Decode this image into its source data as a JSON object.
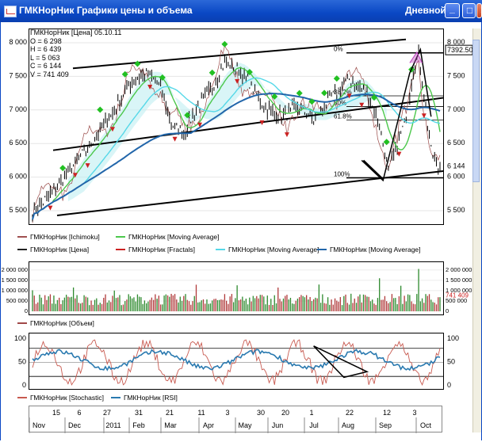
{
  "window": {
    "title": "ГМКНорНик Графики цены и объема",
    "period": "Дневной"
  },
  "ohlc": {
    "header": "ГМКНорНик [Цена] 05.10.11",
    "o": "O = 6 298",
    "h": "H = 6 439",
    "l": "L = 5 063",
    "c": "C = 6 144",
    "v": "V = 741 409"
  },
  "price_axis": [
    "8 000",
    "7 500",
    "7 000",
    "6 500",
    "6 000",
    "5 500"
  ],
  "price_left_axis": [
    "8 000",
    "7 500",
    "7 000",
    "6 500",
    "6 000",
    "5 500"
  ],
  "price_markers": {
    "high": "7392.50",
    "last": "6 144"
  },
  "fib_levels": [
    "0%",
    "38.2%",
    "50%",
    "61.8%",
    "100%"
  ],
  "legend_price": [
    {
      "name": "ГМКНорНик [Ichimoku]",
      "color": "#a05050"
    },
    {
      "name": "ГМКНорНик [Moving Average]",
      "color": "#4cc84c"
    },
    {
      "name": "ГМКНорНик [Цена]",
      "color": "#222222"
    },
    {
      "name": "ГМКНорНик [Fractals]",
      "color": "#cc2222"
    },
    {
      "name": "ГМКНорНик [Moving Average]",
      "color": "#55d8e8"
    },
    {
      "name": "ГМКНорНик [Moving Average]",
      "color": "#2266aa"
    }
  ],
  "volume_axis": [
    "2 000 000",
    "1 500 000",
    "1 000 000",
    "500 000",
    "0"
  ],
  "volume_left_axis": [
    "2 000 000",
    "1 500 000",
    "1 000 000",
    "500 000",
    "0"
  ],
  "volume_last": "741 409",
  "legend_volume": [
    {
      "name": "ГМКНорНик [Объем]",
      "color": "#a04848"
    }
  ],
  "osc_axis": [
    "100",
    "50",
    "0"
  ],
  "osc_left_axis": [
    "100",
    "50",
    "0"
  ],
  "legend_osc": [
    {
      "name": "ГМКНорНик [Stochastic]",
      "color": "#c85a50"
    },
    {
      "name": "ГМКНорНик [RSI]",
      "color": "#2a7ab0"
    }
  ],
  "time_axis": {
    "days": [
      "15",
      "6",
      "27",
      "31",
      "21",
      "11",
      "3",
      "30",
      "20",
      "1",
      "22",
      "12",
      "3"
    ],
    "months": [
      "Nov",
      "Dec",
      "2011",
      "Feb",
      "Mar",
      "Apr",
      "May",
      "Jun",
      "Jul",
      "Aug",
      "Sep",
      "Oct"
    ]
  }
}
